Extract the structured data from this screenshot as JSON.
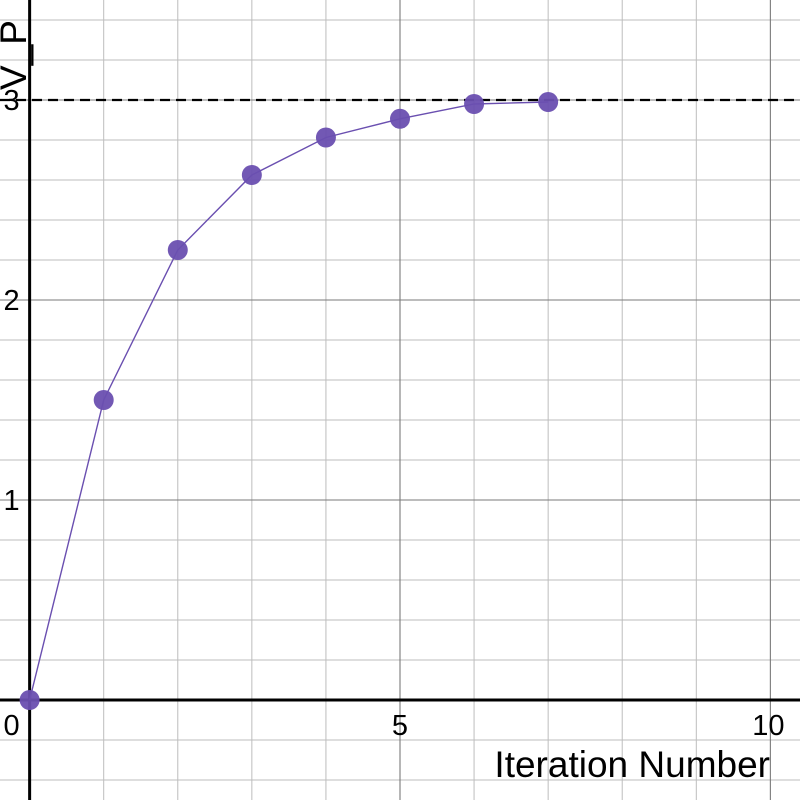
{
  "chart_data": {
    "type": "line",
    "xlabel": "Iteration Number",
    "ylabel": "V_P",
    "xlim": [
      -0.4,
      10.4
    ],
    "ylim": [
      -0.5,
      3.5
    ],
    "x_minor_step": 1,
    "x_major_step": 5,
    "y_minor_step": 0.2,
    "y_major_step": 1,
    "x_tick_labels": [
      "0",
      "5",
      "10"
    ],
    "y_tick_labels": [
      "1",
      "2",
      "3"
    ],
    "grid": true,
    "reference_line": {
      "y": 3,
      "style": "dashed"
    },
    "series": [
      {
        "x": [
          0,
          1,
          2,
          3,
          4,
          5,
          6,
          7
        ],
        "y": [
          0,
          1.5,
          2.25,
          2.625,
          2.8125,
          2.906,
          2.98,
          2.99
        ]
      }
    ]
  },
  "colors": {
    "series": "#6a4fb0",
    "marker": "#6a4fb0",
    "axis": "#000000",
    "grid": "#bdbdbd"
  }
}
